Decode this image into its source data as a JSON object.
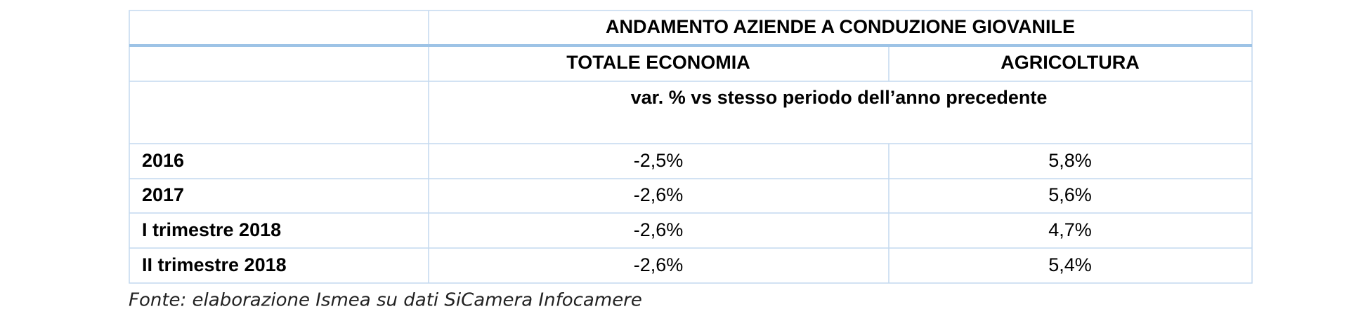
{
  "table": {
    "title": "ANDAMENTO AZIENDE A CONDUZIONE GIOVANILE",
    "columns": [
      "TOTALE ECONOMIA",
      "AGRICOLTURA"
    ],
    "unit": "var. % vs stesso periodo dell’anno precedente",
    "rows": [
      [
        "2016",
        "-2,5%",
        "5,8%"
      ],
      [
        "2017",
        "-2,6%",
        "5,6%"
      ],
      [
        "I trimestre 2018",
        "-2,6%",
        "4,7%"
      ],
      [
        "II trimestre 2018",
        "-2,6%",
        "5,4%"
      ]
    ]
  },
  "footnote": "Fonte: elaborazione Ismea su dati SiCamera Infocamere"
}
